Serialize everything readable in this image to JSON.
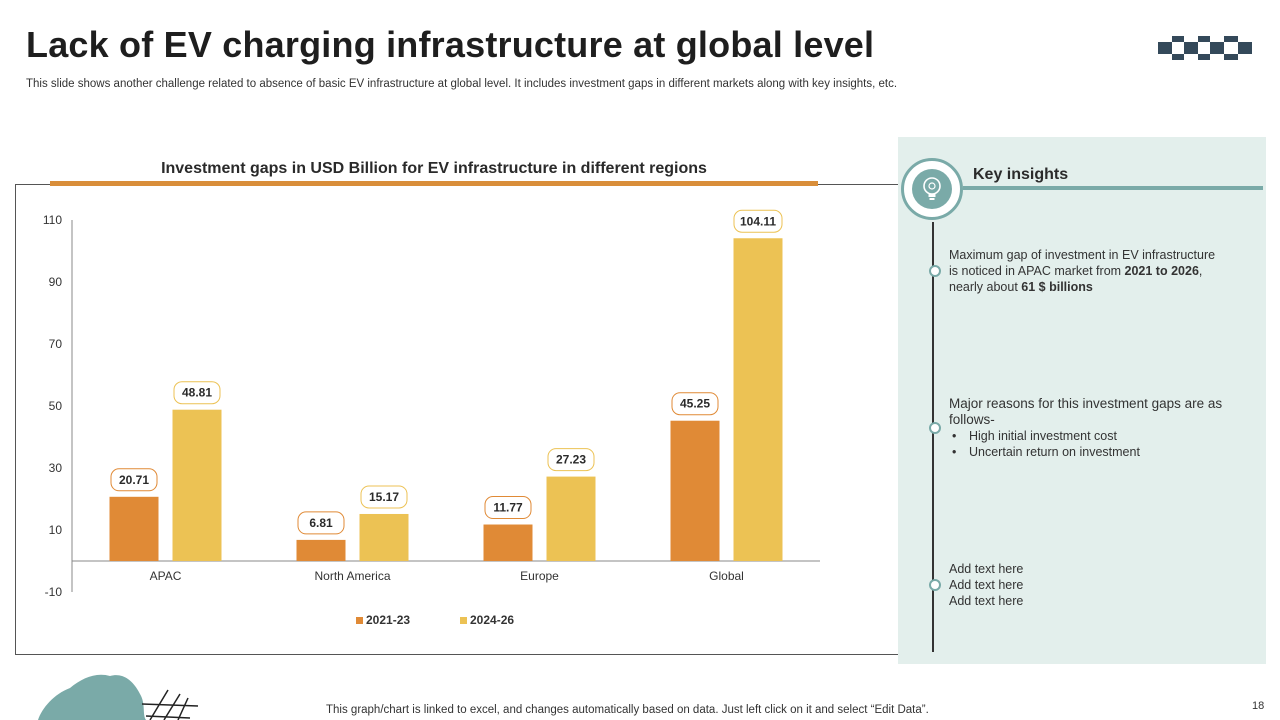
{
  "page": {
    "title": "Lack of EV charging infrastructure at global level",
    "subtitle": "This slide shows another challenge related to absence of basic EV infrastructure at global level. It includes investment gaps in different markets along with key insights, etc.",
    "footer_note": "This graph/chart is linked to excel, and changes automatically based on data. Just left click on it and select “Edit Data”.",
    "page_number": "18"
  },
  "colors": {
    "series_2021": "#e08a36",
    "series_2024": "#ecc254",
    "accent_orange": "#d98e3a",
    "teal": "#7aaaa8",
    "panel_bg": "#e3efec",
    "dark_slate": "#34495a"
  },
  "chart_data": {
    "type": "bar",
    "title": "Investment gaps in USD Billion for EV infrastructure in different regions",
    "categories": [
      "APAC",
      "North America",
      "Europe",
      "Global"
    ],
    "series": [
      {
        "name": "2021-23",
        "values": [
          20.71,
          6.81,
          11.77,
          45.25
        ]
      },
      {
        "name": "2024-26",
        "values": [
          48.81,
          15.17,
          27.23,
          104.11
        ]
      }
    ],
    "ylim": [
      -10,
      110
    ],
    "yticks": [
      -10,
      10,
      30,
      50,
      70,
      90,
      110
    ],
    "xlabel": "",
    "ylabel": "",
    "legend_position": "bottom"
  },
  "insights": {
    "heading": "Key insights",
    "item1_line1": "Maximum gap of investment in EV infrastructure",
    "item1_line2_prefix": "is noticed in APAC market from ",
    "item1_line2_bold": "2021 to 2026",
    "item1_line2_suffix": ",",
    "item1_line3_prefix": "nearly about ",
    "item1_line3_bold": "61 $ billions",
    "item2_text": "Major reasons for this investment gaps are as follows-",
    "item2_bullets": [
      "High initial investment cost",
      "Uncertain return on investment"
    ],
    "item3_lines": [
      "Add text here",
      "Add text here",
      "Add text here"
    ]
  }
}
